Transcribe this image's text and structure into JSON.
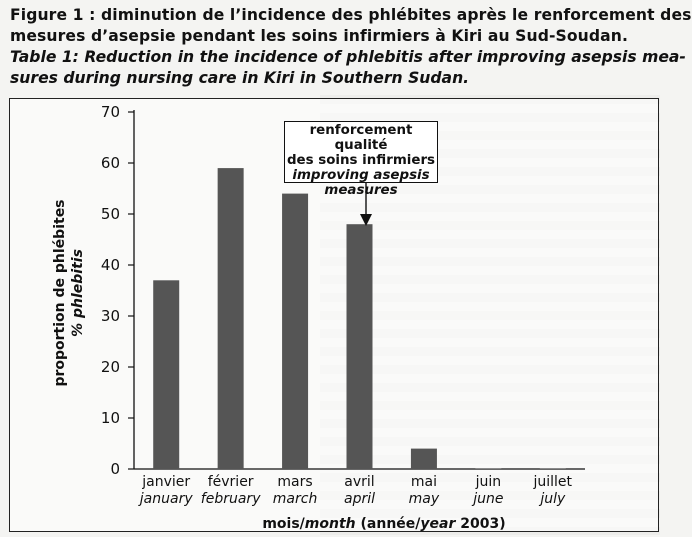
{
  "caption": {
    "fr_line1": "Figure 1 : diminution de l’incidence des phlébites après le renforcement des",
    "fr_line2": "mesures d’asepsie pendant les soins infirmiers à Kiri au Sud-Soudan.",
    "en_line1": "Table 1: Reduction in the incidence of phlebitis after improving asepsis mea-",
    "en_line2": "sures during nursing care in Kiri in Southern Sudan."
  },
  "annotation": {
    "fr_line1": "renforcement qualité",
    "fr_line2": "des soins infirmiers",
    "en_line1": "improving asepsis",
    "en_line2": "measures"
  },
  "chart_data": {
    "type": "bar",
    "categories": [
      {
        "fr": "janvier",
        "en": "january"
      },
      {
        "fr": "février",
        "en": "february"
      },
      {
        "fr": "mars",
        "en": "march"
      },
      {
        "fr": "avril",
        "en": "april"
      },
      {
        "fr": "mai",
        "en": "may"
      },
      {
        "fr": "juin",
        "en": "june"
      },
      {
        "fr": "juillet",
        "en": "july"
      }
    ],
    "values": [
      37,
      59,
      54,
      48,
      4,
      0,
      0
    ],
    "ylim": [
      0,
      70
    ],
    "yticks": [
      "0",
      "10",
      "20",
      "30",
      "40",
      "50",
      "60",
      "70"
    ],
    "ylabel": {
      "fr": "proportion de phlébites",
      "en": "% phlebitis"
    },
    "xlabel": {
      "fr": "mois/",
      "en": "month",
      "fr2": " (année/",
      "en2": "year",
      "fr3": " 2003)"
    },
    "annotation_target": "avril",
    "bar_color": "#555555",
    "grid": false
  }
}
